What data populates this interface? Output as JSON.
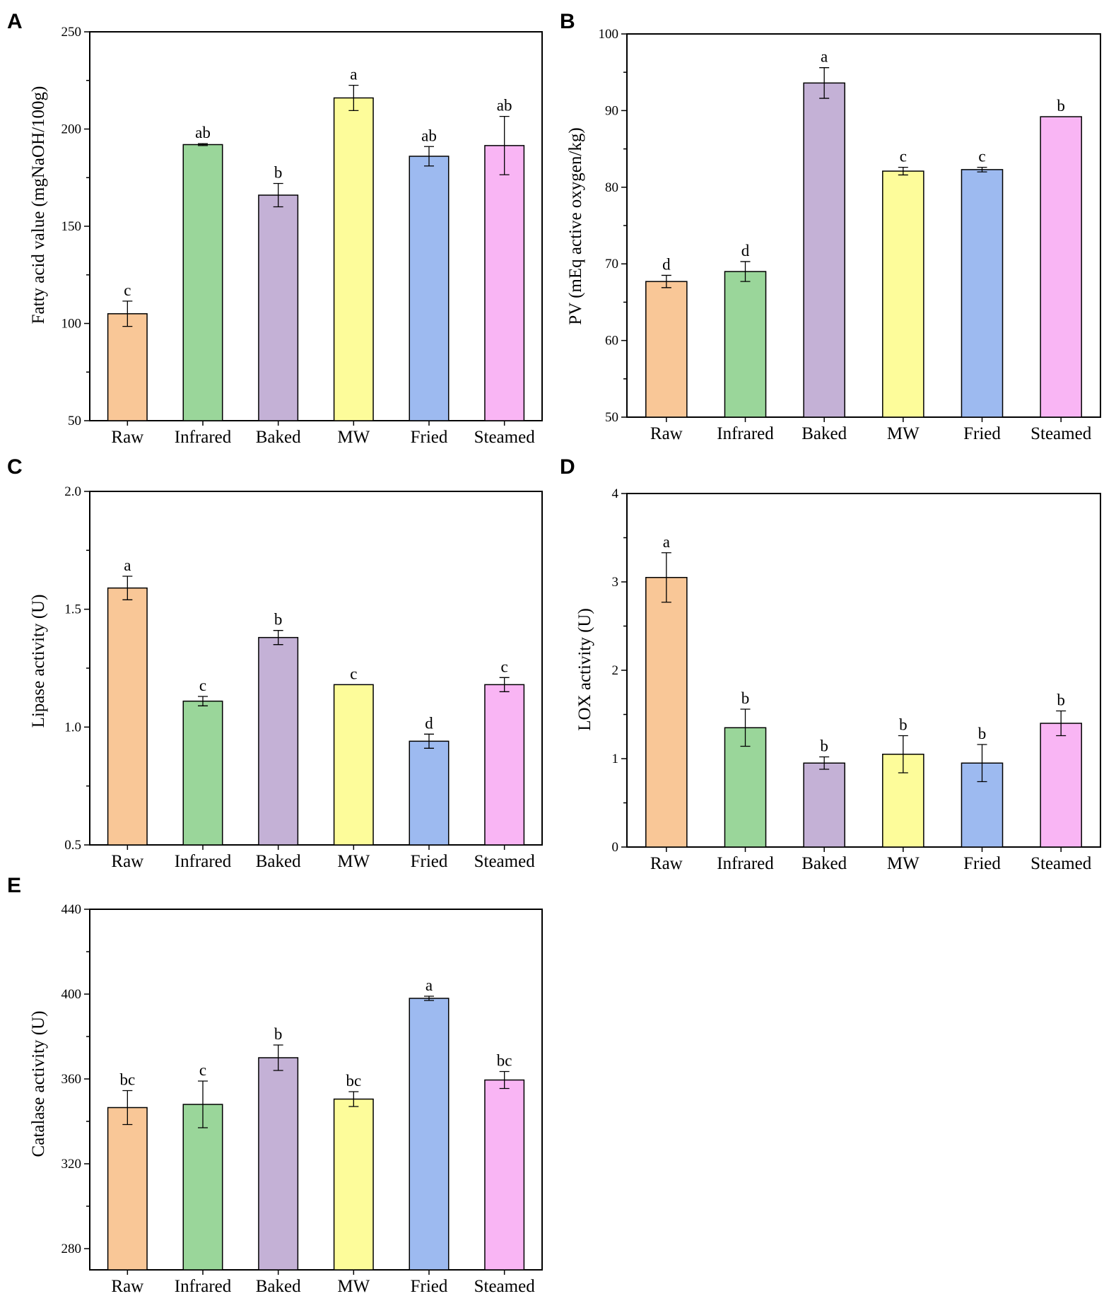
{
  "colors": {
    "Raw": "#f9c797",
    "Infrared": "#9ad69a",
    "Baked": "#c4b1d6",
    "MW": "#fdfc9a",
    "Fried": "#9dbaf0",
    "Steamed": "#f9b5f4"
  },
  "chart_data": [
    {
      "panel": "A",
      "type": "bar",
      "categories": [
        "Raw",
        "Infrared",
        "Baked",
        "MW",
        "Fried",
        "Steamed"
      ],
      "values": [
        105,
        192,
        166,
        216,
        186,
        191.5
      ],
      "errors": [
        6.5,
        0.5,
        6,
        6.5,
        5,
        15
      ],
      "letters": [
        "c",
        "ab",
        "b",
        "a",
        "ab",
        "ab"
      ],
      "ylabel": "Fatty acid value (mgNaOH/100g)",
      "ylim": [
        50,
        250
      ],
      "yticks": [
        50,
        100,
        150,
        200,
        250
      ],
      "ytick_labels": [
        "50",
        "100",
        "150",
        "200",
        "250"
      ]
    },
    {
      "panel": "B",
      "type": "bar",
      "categories": [
        "Raw",
        "Infrared",
        "Baked",
        "MW",
        "Fried",
        "Steamed"
      ],
      "values": [
        67.7,
        69,
        93.6,
        82.1,
        82.3,
        89.2
      ],
      "errors": [
        0.8,
        1.3,
        2,
        0.5,
        0.3,
        0
      ],
      "letters": [
        "d",
        "d",
        "a",
        "c",
        "c",
        "b"
      ],
      "ylabel": "PV (mEq active oxygen/kg)",
      "ylim": [
        50,
        100
      ],
      "yticks": [
        50,
        60,
        70,
        80,
        90,
        100
      ],
      "ytick_labels": [
        "50",
        "60",
        "70",
        "80",
        "90",
        "100"
      ]
    },
    {
      "panel": "C",
      "type": "bar",
      "categories": [
        "Raw",
        "Infrared",
        "Baked",
        "MW",
        "Fried",
        "Steamed"
      ],
      "values": [
        1.59,
        1.11,
        1.38,
        1.18,
        0.94,
        1.18
      ],
      "errors": [
        0.05,
        0.02,
        0.03,
        0,
        0.03,
        0.03
      ],
      "letters": [
        "a",
        "c",
        "b",
        "c",
        "d",
        "c"
      ],
      "ylabel": "Lipase activity (U)",
      "ylim": [
        0.5,
        2.0
      ],
      "yticks": [
        0.5,
        1.0,
        1.5,
        2.0
      ],
      "ytick_labels": [
        "0.5",
        "1.0",
        "1.5",
        "2.0"
      ]
    },
    {
      "panel": "D",
      "type": "bar",
      "categories": [
        "Raw",
        "Infrared",
        "Baked",
        "MW",
        "Fried",
        "Steamed"
      ],
      "values": [
        3.05,
        1.35,
        0.95,
        1.05,
        0.95,
        1.4
      ],
      "errors": [
        0.28,
        0.21,
        0.07,
        0.21,
        0.21,
        0.14
      ],
      "letters": [
        "a",
        "b",
        "b",
        "b",
        "b",
        "b"
      ],
      "ylabel": "LOX activity (U)",
      "ylim": [
        0,
        4
      ],
      "yticks": [
        0,
        1,
        2,
        3,
        4
      ],
      "ytick_labels": [
        "0",
        "1",
        "2",
        "3",
        "4"
      ]
    },
    {
      "panel": "E",
      "type": "bar",
      "categories": [
        "Raw",
        "Infrared",
        "Baked",
        "MW",
        "Fried",
        "Steamed"
      ],
      "values": [
        346.5,
        348,
        370,
        350.5,
        398,
        359.5
      ],
      "errors": [
        8,
        11,
        6,
        3.5,
        1,
        4
      ],
      "letters": [
        "bc",
        "c",
        "b",
        "bc",
        "a",
        "bc"
      ],
      "ylabel": "Catalase activity (U)",
      "ylim": [
        270,
        440
      ],
      "yticks": [
        280,
        320,
        360,
        400,
        440
      ],
      "ytick_labels": [
        "280",
        "320",
        "360",
        "400",
        "440"
      ]
    }
  ]
}
